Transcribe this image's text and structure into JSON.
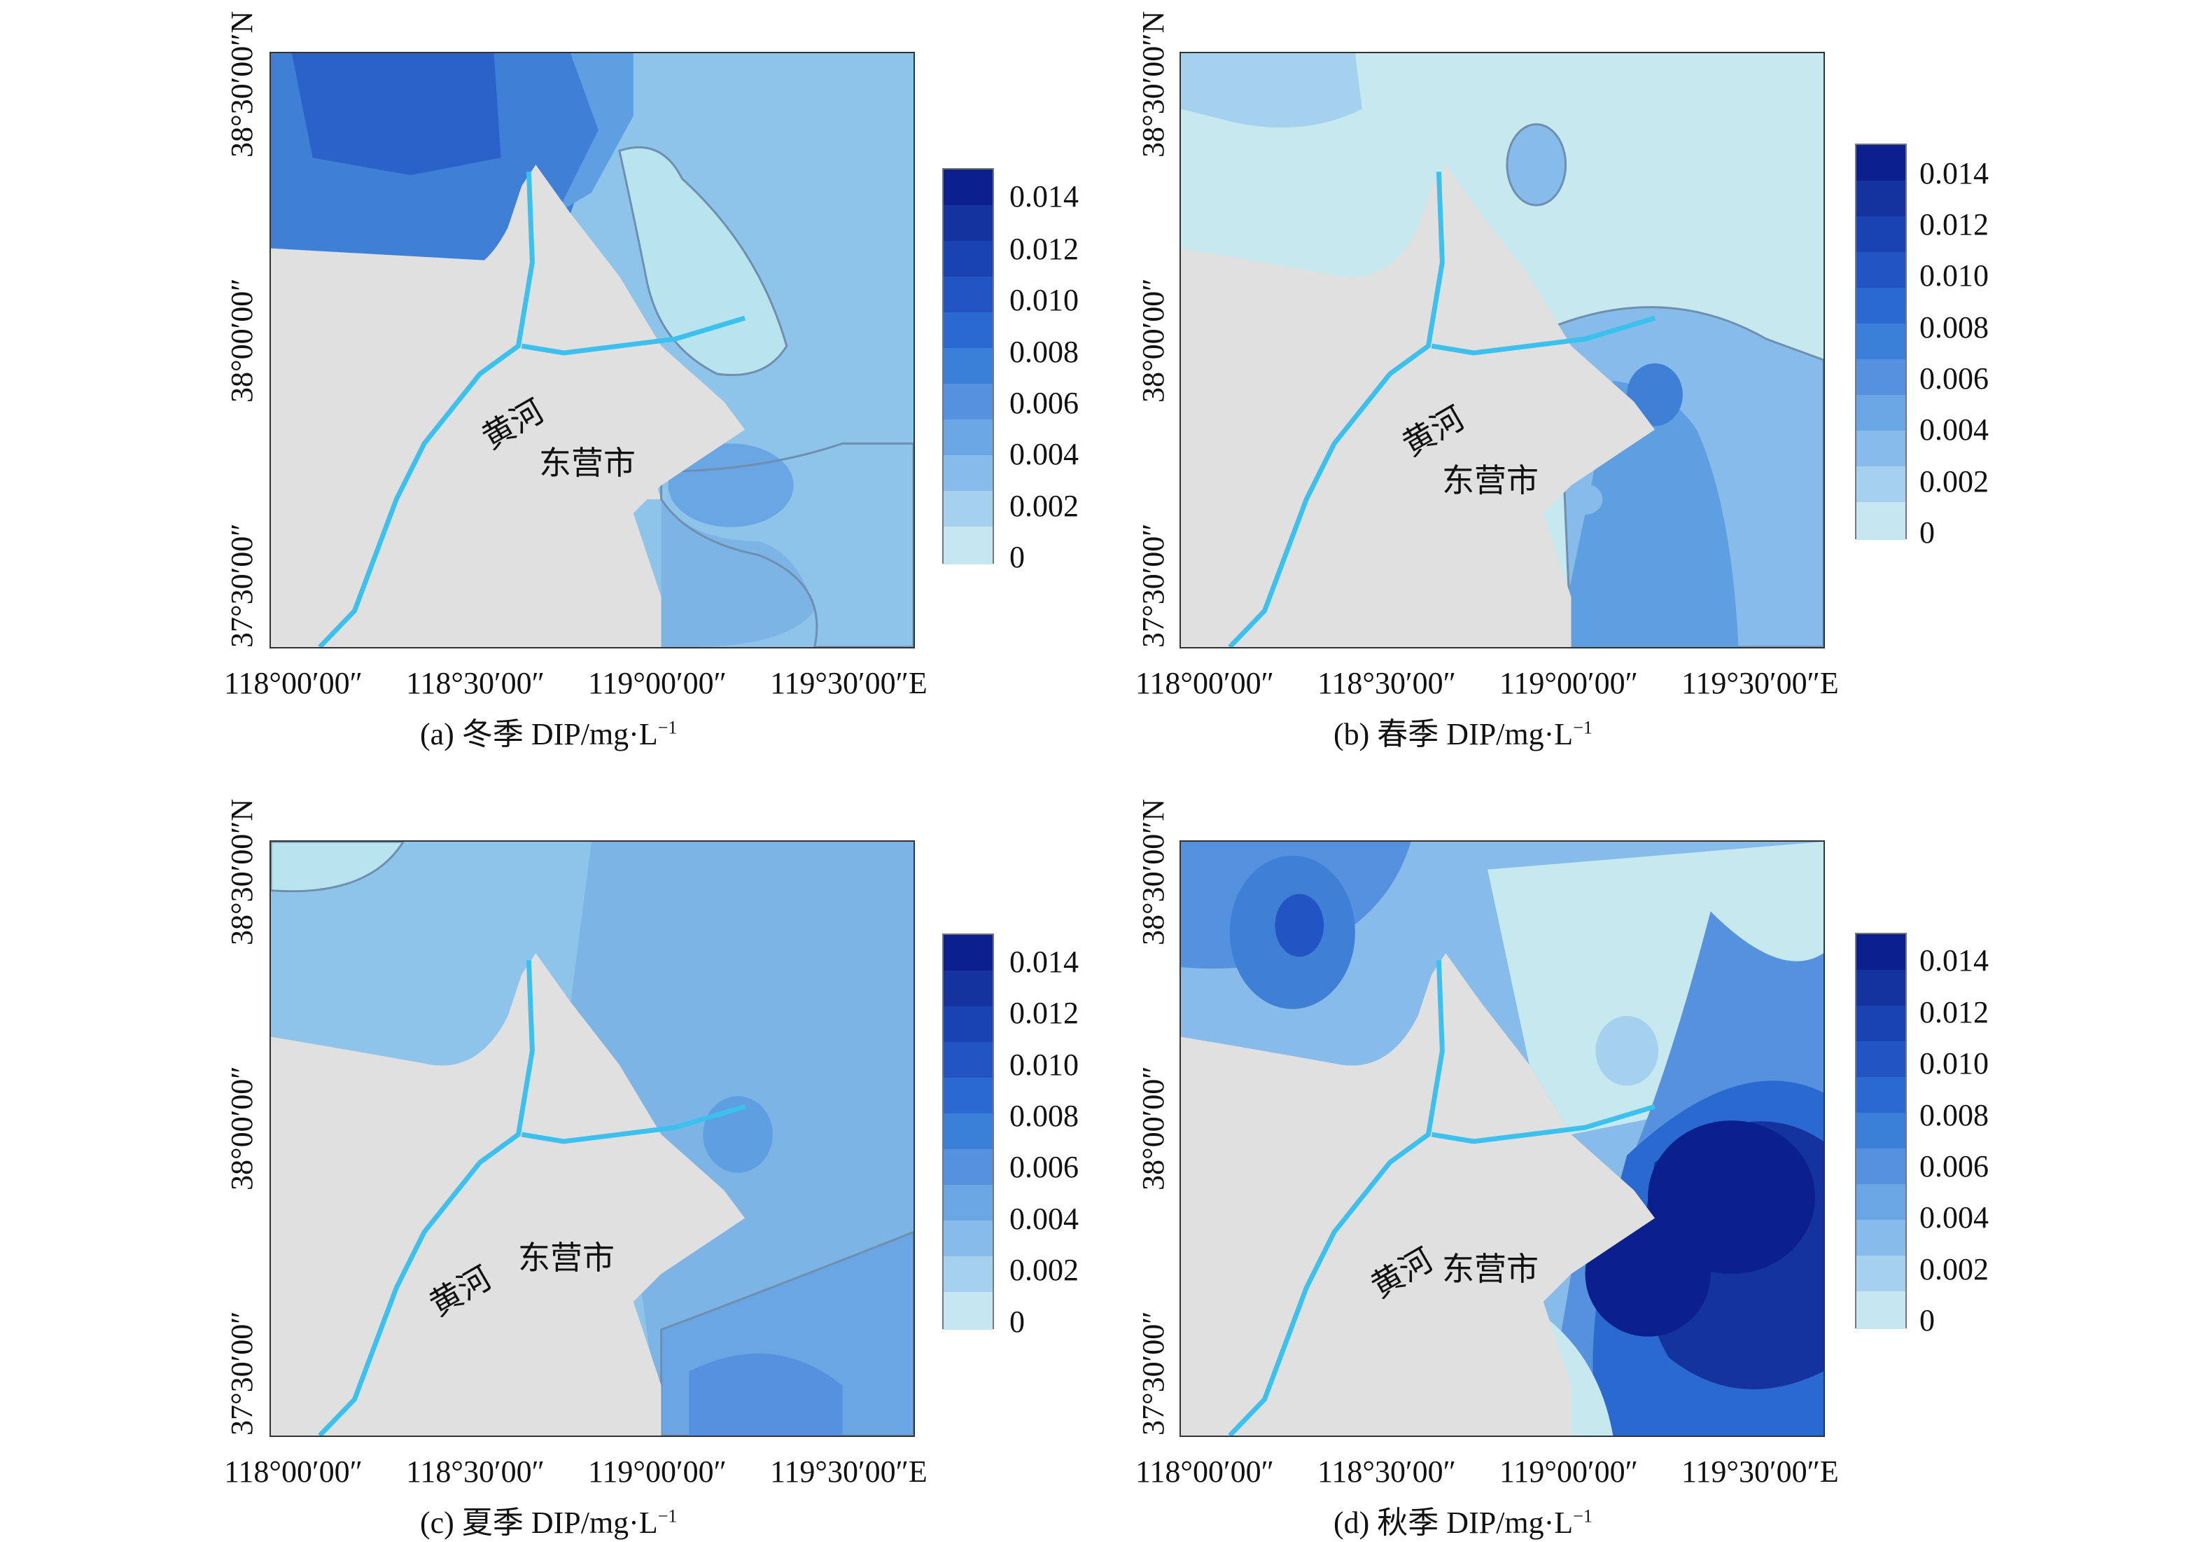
{
  "legend": {
    "labels": [
      "0.014",
      "0.012",
      "0.010",
      "0.008",
      "0.006",
      "0.004",
      "0.002",
      "0"
    ],
    "colors": [
      "#0b1f8f",
      "#14339f",
      "#1a43b2",
      "#2254c4",
      "#2a69d0",
      "#3a7fd8",
      "#5591de",
      "#6aa6e4",
      "#86bbea",
      "#a5d1ef",
      "#c6e6f2"
    ]
  },
  "axes": {
    "y_ticks": [
      "38°30′00″N",
      "38°00′00″",
      "37°30′00″"
    ],
    "x_ticks": [
      "118°00′00″",
      "118°30′00″",
      "119°00′00″",
      "119°30′00″E"
    ]
  },
  "labels": {
    "river": "黄河",
    "city": "东营市"
  },
  "colors": {
    "land": "#e0e0e0",
    "river": "#3cc0ee"
  },
  "panels": [
    {
      "id": "a",
      "caption": "(a) 冬季 DIP/mg·L",
      "caption_sup": "−1",
      "sea_level": "0.004",
      "high_level": "0.008",
      "low_level": "0.001"
    },
    {
      "id": "b",
      "caption": "(b) 春季 DIP/mg·L",
      "caption_sup": "−1",
      "sea_level": "0.001",
      "high_level": "0.006",
      "low_level": "0.002"
    },
    {
      "id": "c",
      "caption": "(c) 夏季 DIP/mg·L",
      "caption_sup": "−1",
      "sea_level": "0.003",
      "high_level": "0.006",
      "low_level": "0.001"
    },
    {
      "id": "d",
      "caption": "(d) 秋季 DIP/mg·L",
      "caption_sup": "−1",
      "sea_level": "0.003",
      "high_level": "0.014",
      "low_level": "0.001"
    }
  ]
}
